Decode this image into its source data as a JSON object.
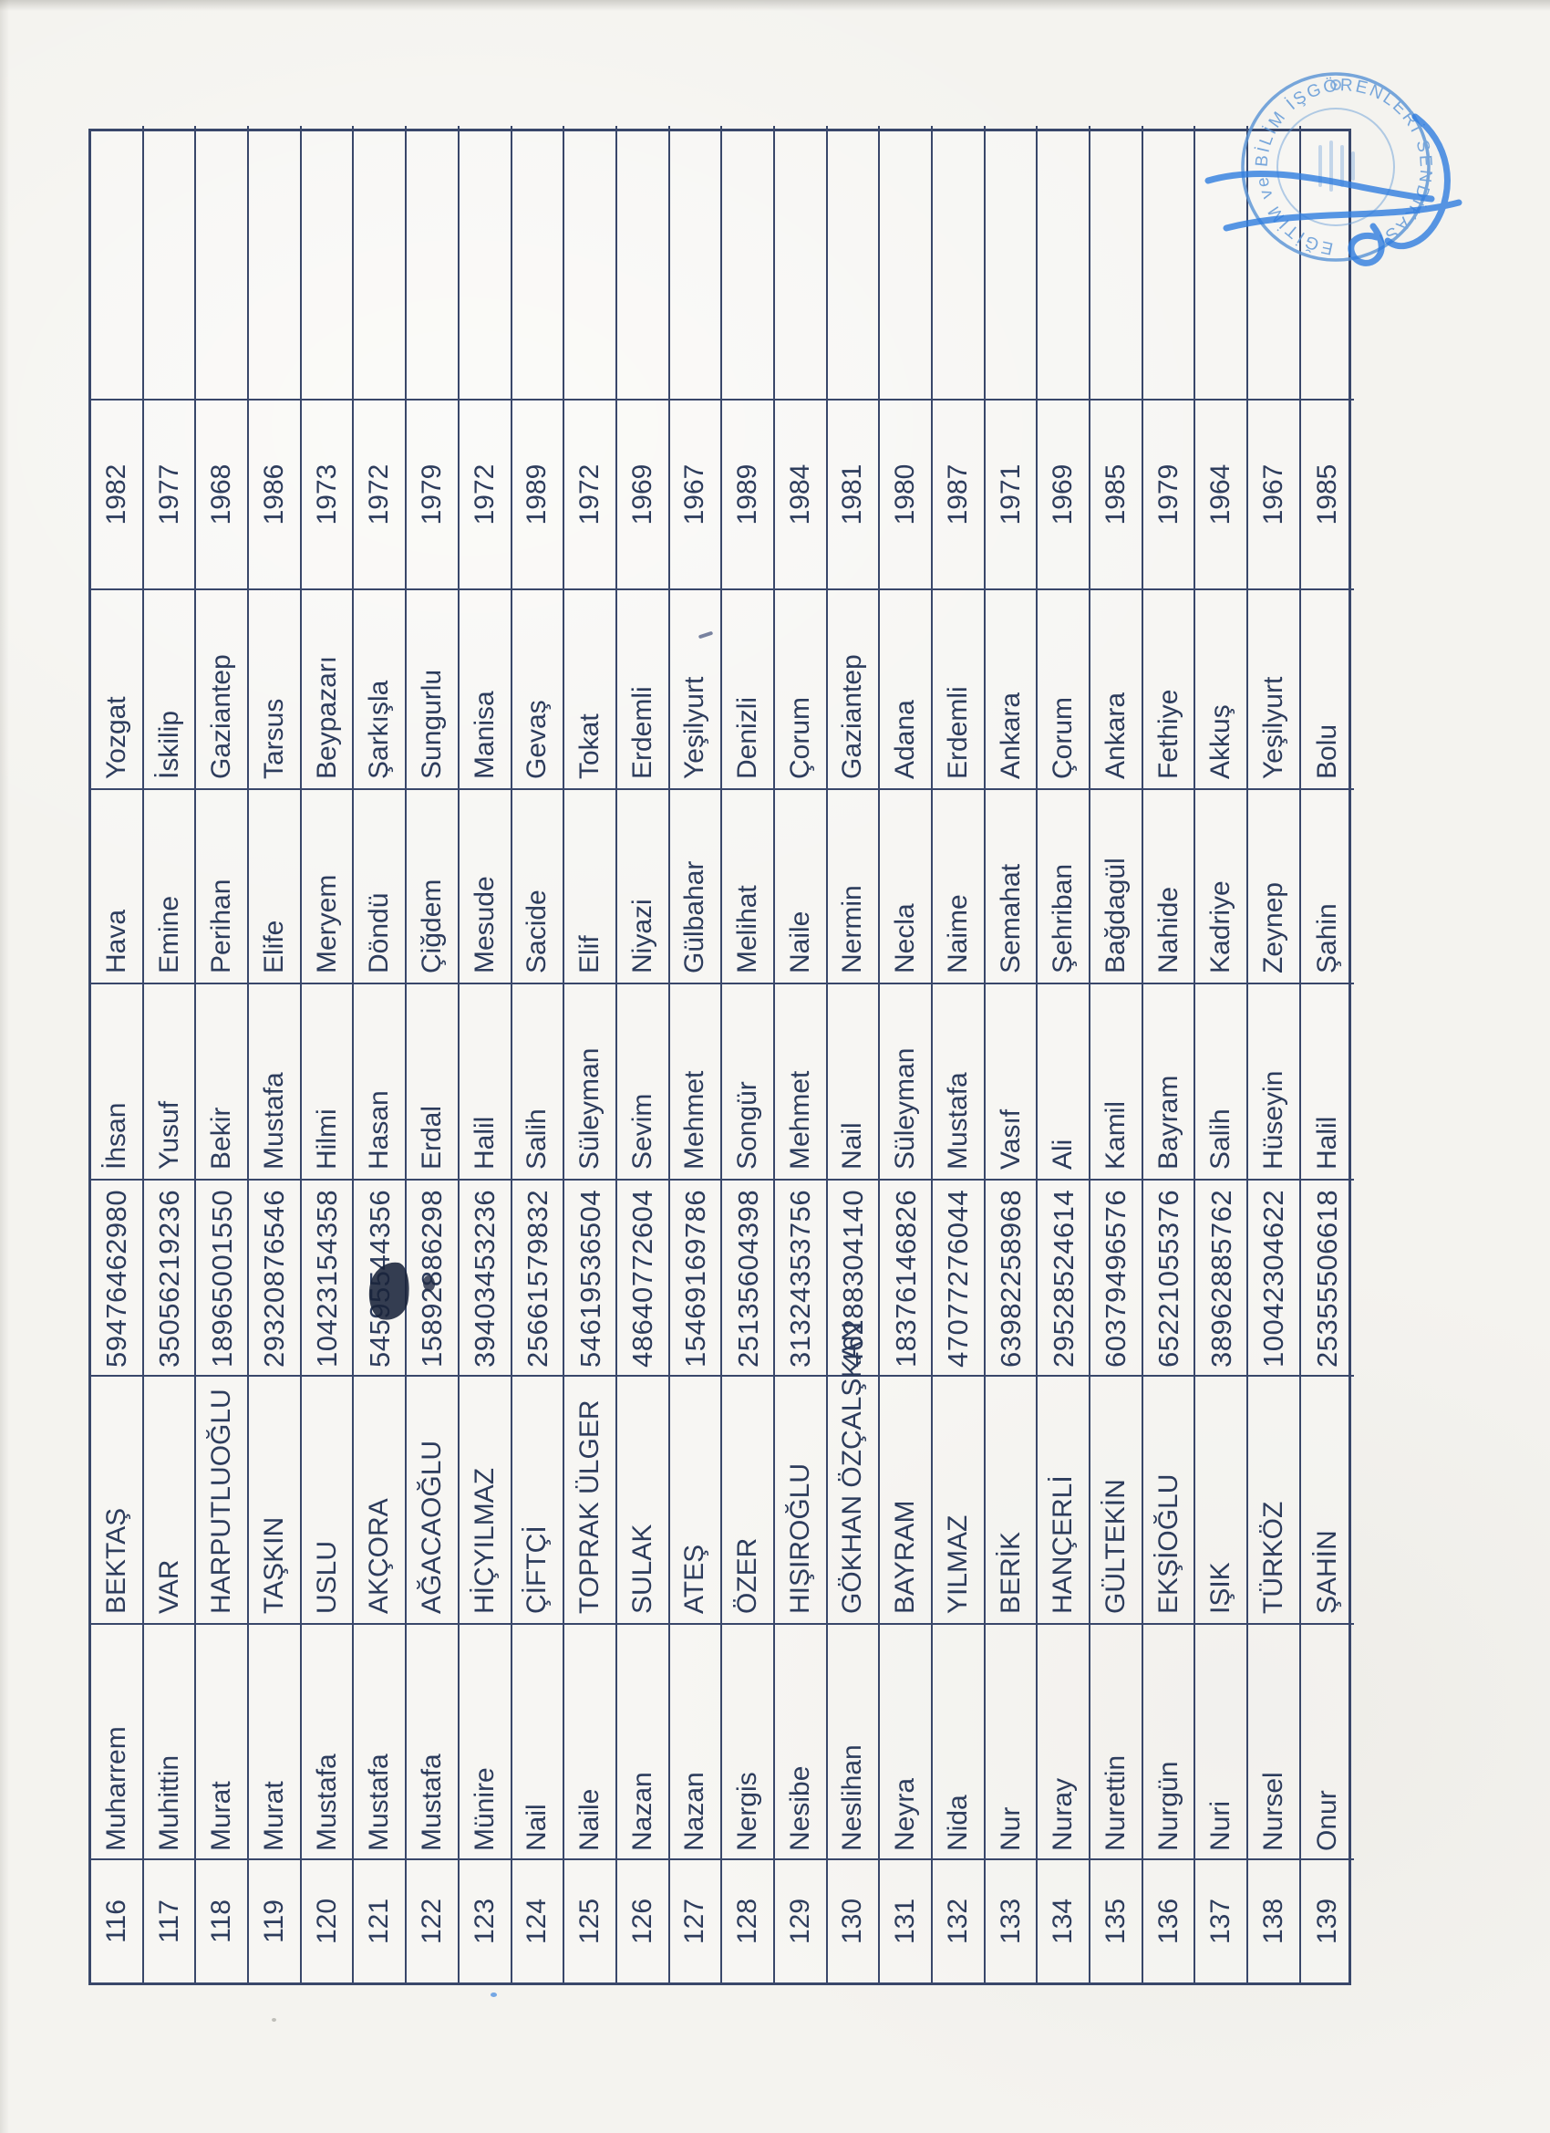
{
  "document": {
    "rows": [
      {
        "no": "116",
        "first_name": "Muharrem",
        "surname": "BEKTAŞ",
        "national_id": "59476462980",
        "father_name": "İhsan",
        "mother_name": "Hava",
        "birthplace": "Yozgat",
        "birth_year": "1982"
      },
      {
        "no": "117",
        "first_name": "Muhittin",
        "surname": "VAR",
        "national_id": "35056219236",
        "father_name": "Yusuf",
        "mother_name": "Emine",
        "birthplace": "İskilip",
        "birth_year": "1977"
      },
      {
        "no": "118",
        "first_name": "Murat",
        "surname": "HARPUTLUOĞLU",
        "national_id": "18965001550",
        "father_name": "Bekir",
        "mother_name": "Perihan",
        "birthplace": "Gaziantep",
        "birth_year": "1968"
      },
      {
        "no": "119",
        "first_name": "Murat",
        "surname": "TAŞKIN",
        "national_id": "29320876546",
        "father_name": "Mustafa",
        "mother_name": "Elife",
        "birthplace": "Tarsus",
        "birth_year": "1986"
      },
      {
        "no": "120",
        "first_name": "Mustafa",
        "surname": "USLU",
        "national_id": "10423154358",
        "father_name": "Hilmi",
        "mother_name": "Meryem",
        "birthplace": "Beypazarı",
        "birth_year": "1973"
      },
      {
        "no": "121",
        "first_name": "Mustafa",
        "surname": "AKÇORA",
        "national_id": "54595544356",
        "father_name": "Hasan",
        "mother_name": "Döndü",
        "birthplace": "Şarkışla",
        "birth_year": "1972"
      },
      {
        "no": "122",
        "first_name": "Mustafa",
        "surname": "AĞACAOĞLU",
        "national_id": "15892886298",
        "father_name": "Erdal",
        "mother_name": "Çiğdem",
        "birthplace": "Sungurlu",
        "birth_year": "1979"
      },
      {
        "no": "123",
        "first_name": "Münire",
        "surname": "HİÇYILMAZ",
        "national_id": "39403453236",
        "father_name": "Halil",
        "mother_name": "Mesude",
        "birthplace": "Manisa",
        "birth_year": "1972"
      },
      {
        "no": "124",
        "first_name": "Nail",
        "surname": "ÇİFTÇİ",
        "national_id": "25661579832",
        "father_name": "Salih",
        "mother_name": "Sacide",
        "birthplace": "Gevaş",
        "birth_year": "1989"
      },
      {
        "no": "125",
        "first_name": "Naile",
        "surname": "TOPRAK ÜLGER",
        "national_id": "54619536504",
        "father_name": "Süleyman",
        "mother_name": "Elif",
        "birthplace": "Tokat",
        "birth_year": "1972"
      },
      {
        "no": "126",
        "first_name": "Nazan",
        "surname": "SULAK",
        "national_id": "48640772604",
        "father_name": "Sevim",
        "mother_name": "Niyazi",
        "birthplace": "Erdemli",
        "birth_year": "1969"
      },
      {
        "no": "127",
        "first_name": "Nazan",
        "surname": "ATEŞ",
        "national_id": "15469169786",
        "father_name": "Mehmet",
        "mother_name": "Gülbahar",
        "birthplace": "Yeşilyurt",
        "birth_year": "1967"
      },
      {
        "no": "128",
        "first_name": "Nergis",
        "surname": "ÖZER",
        "national_id": "25135604398",
        "father_name": "Songür",
        "mother_name": "Melihat",
        "birthplace": "Denizli",
        "birth_year": "1989"
      },
      {
        "no": "129",
        "first_name": "Nesibe",
        "surname": "HIŞIROĞLU",
        "national_id": "31324353756",
        "father_name": "Mehmet",
        "mother_name": "Naile",
        "birthplace": "Çorum",
        "birth_year": "1984"
      },
      {
        "no": "130",
        "first_name": "Neslihan",
        "surname": "GÖKHAN ÖZÇALŞKAN",
        "national_id": "46288304140",
        "father_name": "Nail",
        "mother_name": "Nermin",
        "birthplace": "Gaziantep",
        "birth_year": "1981"
      },
      {
        "no": "131",
        "first_name": "Neyra",
        "surname": "BAYRAM",
        "national_id": "18376146826",
        "father_name": "Süleyman",
        "mother_name": "Necla",
        "birthplace": "Adana",
        "birth_year": "1980"
      },
      {
        "no": "132",
        "first_name": "Nida",
        "surname": "YILMAZ",
        "national_id": "47077276044",
        "father_name": "Mustafa",
        "mother_name": "Naime",
        "birthplace": "Erdemli",
        "birth_year": "1987"
      },
      {
        "no": "133",
        "first_name": "Nur",
        "surname": "BERİK",
        "national_id": "63982258968",
        "father_name": "Vasıf",
        "mother_name": "Semahat",
        "birthplace": "Ankara",
        "birth_year": "1971"
      },
      {
        "no": "134",
        "first_name": "Nuray",
        "surname": "HANÇERLİ",
        "national_id": "29528524614",
        "father_name": "Ali",
        "mother_name": "Şehriban",
        "birthplace": "Çorum",
        "birth_year": "1969"
      },
      {
        "no": "135",
        "first_name": "Nurettin",
        "surname": "GÜLTEKİN",
        "national_id": "60379496576",
        "father_name": "Kamil",
        "mother_name": "Bağdagül",
        "birthplace": "Ankara",
        "birth_year": "1985"
      },
      {
        "no": "136",
        "first_name": "Nurgün",
        "surname": "EKŞİOĞLU",
        "national_id": "65221055376",
        "father_name": "Bayram",
        "mother_name": "Nahide",
        "birthplace": "Fethiye",
        "birth_year": "1979"
      },
      {
        "no": "137",
        "first_name": "Nuri",
        "surname": "IŞIK",
        "national_id": "38962885762",
        "father_name": "Salih",
        "mother_name": "Kadriye",
        "birthplace": "Akkuş",
        "birth_year": "1964"
      },
      {
        "no": "138",
        "first_name": "Nursel",
        "surname": "TÜRKÖZ",
        "national_id": "10042304622",
        "father_name": "Hüseyin",
        "mother_name": "Zeynep",
        "birthplace": "Yeşilyurt",
        "birth_year": "1967"
      },
      {
        "no": "139",
        "first_name": "Onur",
        "surname": "ŞAHİN",
        "national_id": "25355506618",
        "father_name": "Halil",
        "mother_name": "Şahin",
        "birthplace": "Bolu",
        "birth_year": "1985"
      }
    ],
    "stamp": {
      "rim_text": "EĞİTİM ve BİLİM İŞGÖRENLERİ SENDİKASI",
      "ink_color": "#5b95d6"
    }
  }
}
